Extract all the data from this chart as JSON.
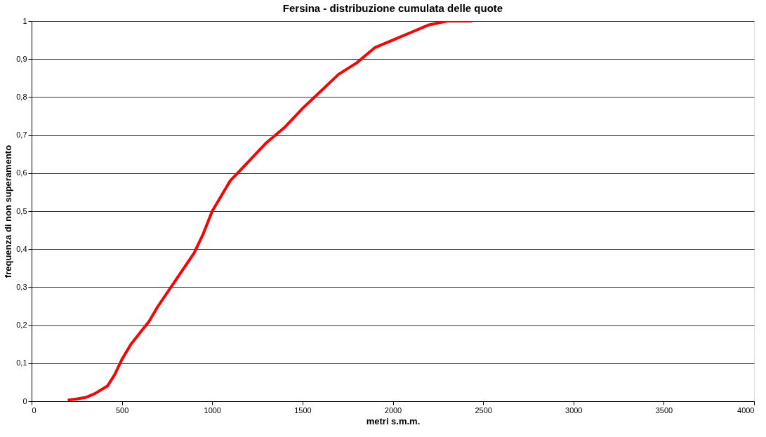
{
  "chart_data": {
    "type": "line",
    "title": "Fersina - distribuzione cumulata delle quote",
    "xlabel": "metri s.m.m.",
    "ylabel": "frequenza di non superamento",
    "x": [
      200,
      250,
      300,
      350,
      420,
      460,
      500,
      550,
      600,
      650,
      700,
      800,
      900,
      950,
      1000,
      1050,
      1100,
      1200,
      1300,
      1400,
      1500,
      1600,
      1700,
      1800,
      1900,
      2000,
      2100,
      2200,
      2300,
      2440
    ],
    "series": [
      {
        "color": "#ff0000",
        "values": [
          0.003,
          0.006,
          0.01,
          0.02,
          0.04,
          0.07,
          0.11,
          0.15,
          0.18,
          0.21,
          0.25,
          0.32,
          0.39,
          0.44,
          0.5,
          0.54,
          0.58,
          0.63,
          0.68,
          0.72,
          0.77,
          0.815,
          0.86,
          0.89,
          0.93,
          0.95,
          0.97,
          0.99,
          1.0,
          1.0
        ]
      }
    ],
    "xlim": [
      0,
      4000
    ],
    "xticks": [
      0,
      500,
      1000,
      1500,
      2000,
      2500,
      3000,
      3500,
      4000
    ],
    "ylim": [
      0,
      1
    ],
    "yticks": [
      0,
      {
        "value": 0.1,
        "label": "0,1"
      },
      {
        "value": 0.2,
        "label": "0,2"
      },
      {
        "value": 0.3,
        "label": "0,3"
      },
      {
        "value": 0.4,
        "label": "0,4"
      },
      {
        "value": 0.5,
        "label": "0,5"
      },
      {
        "value": 0.6,
        "label": "0,6"
      },
      {
        "value": 0.7,
        "label": "0,7"
      },
      {
        "value": 0.8,
        "label": "0,8"
      },
      {
        "value": 0.9,
        "label": "0,9"
      },
      1
    ],
    "grid": "y",
    "marker": "none",
    "line_style": "solid"
  }
}
